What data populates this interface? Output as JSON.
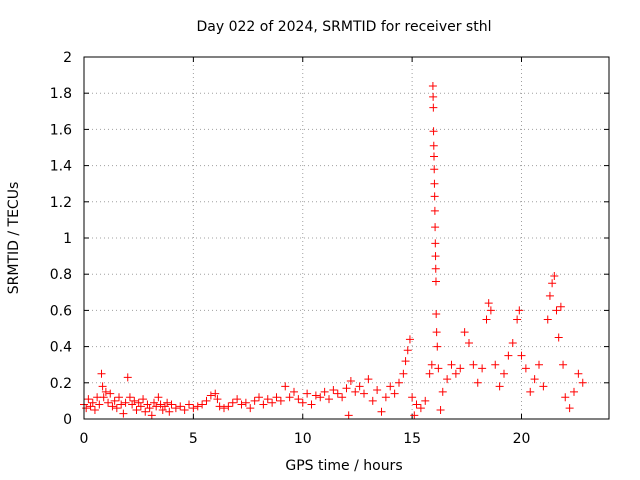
{
  "chart_data": {
    "type": "scatter",
    "title": "Day 022 of 2024, SRMTID for receiver sthl",
    "xlabel": "GPS time / hours",
    "ylabel": "SRMTID / TECUs",
    "xlim": [
      0,
      24
    ],
    "ylim": [
      0,
      2
    ],
    "x_ticks": [
      0,
      5,
      10,
      15,
      20
    ],
    "x_tick_labels": [
      "0",
      "5",
      "10",
      "15",
      "20"
    ],
    "y_ticks": [
      0,
      0.2,
      0.4,
      0.6,
      0.8,
      1,
      1.2,
      1.4,
      1.6,
      1.8,
      2
    ],
    "y_tick_labels": [
      "0",
      "0.2",
      "0.4",
      "0.6",
      "0.8",
      "1",
      "1.2",
      "1.4",
      "1.6",
      "1.8",
      "2"
    ],
    "grid": true,
    "marker": "+",
    "marker_color": "#ff0000",
    "series": [
      {
        "name": "SRMTID",
        "points": [
          [
            0.0,
            0.08
          ],
          [
            0.1,
            0.06
          ],
          [
            0.2,
            0.11
          ],
          [
            0.3,
            0.07
          ],
          [
            0.4,
            0.09
          ],
          [
            0.5,
            0.05
          ],
          [
            0.6,
            0.12
          ],
          [
            0.7,
            0.08
          ],
          [
            0.8,
            0.25
          ],
          [
            0.85,
            0.18
          ],
          [
            0.9,
            0.12
          ],
          [
            1.0,
            0.15
          ],
          [
            1.1,
            0.09
          ],
          [
            1.2,
            0.14
          ],
          [
            1.3,
            0.07
          ],
          [
            1.4,
            0.1
          ],
          [
            1.5,
            0.06
          ],
          [
            1.6,
            0.12
          ],
          [
            1.7,
            0.08
          ],
          [
            1.8,
            0.03
          ],
          [
            1.9,
            0.09
          ],
          [
            2.0,
            0.23
          ],
          [
            2.1,
            0.12
          ],
          [
            2.2,
            0.08
          ],
          [
            2.3,
            0.1
          ],
          [
            2.4,
            0.05
          ],
          [
            2.5,
            0.09
          ],
          [
            2.6,
            0.07
          ],
          [
            2.7,
            0.11
          ],
          [
            2.8,
            0.04
          ],
          [
            2.9,
            0.08
          ],
          [
            3.0,
            0.06
          ],
          [
            3.1,
            0.02
          ],
          [
            3.2,
            0.09
          ],
          [
            3.3,
            0.07
          ],
          [
            3.4,
            0.12
          ],
          [
            3.5,
            0.08
          ],
          [
            3.6,
            0.05
          ],
          [
            3.7,
            0.07
          ],
          [
            3.8,
            0.09
          ],
          [
            3.9,
            0.04
          ],
          [
            4.0,
            0.08
          ],
          [
            4.2,
            0.06
          ],
          [
            4.4,
            0.07
          ],
          [
            4.6,
            0.05
          ],
          [
            4.8,
            0.08
          ],
          [
            5.0,
            0.06
          ],
          [
            5.2,
            0.07
          ],
          [
            5.4,
            0.08
          ],
          [
            5.6,
            0.1
          ],
          [
            5.8,
            0.13
          ],
          [
            6.0,
            0.14
          ],
          [
            6.1,
            0.11
          ],
          [
            6.2,
            0.07
          ],
          [
            6.4,
            0.06
          ],
          [
            6.6,
            0.07
          ],
          [
            6.8,
            0.09
          ],
          [
            7.0,
            0.11
          ],
          [
            7.2,
            0.08
          ],
          [
            7.4,
            0.09
          ],
          [
            7.6,
            0.06
          ],
          [
            7.8,
            0.1
          ],
          [
            8.0,
            0.12
          ],
          [
            8.2,
            0.08
          ],
          [
            8.4,
            0.11
          ],
          [
            8.6,
            0.09
          ],
          [
            8.8,
            0.12
          ],
          [
            9.0,
            0.1
          ],
          [
            9.2,
            0.18
          ],
          [
            9.4,
            0.12
          ],
          [
            9.6,
            0.15
          ],
          [
            9.8,
            0.11
          ],
          [
            10.0,
            0.09
          ],
          [
            10.2,
            0.14
          ],
          [
            10.4,
            0.08
          ],
          [
            10.6,
            0.13
          ],
          [
            10.8,
            0.12
          ],
          [
            11.0,
            0.15
          ],
          [
            11.2,
            0.11
          ],
          [
            11.4,
            0.16
          ],
          [
            11.6,
            0.14
          ],
          [
            11.8,
            0.12
          ],
          [
            12.0,
            0.17
          ],
          [
            12.1,
            0.02
          ],
          [
            12.2,
            0.21
          ],
          [
            12.4,
            0.15
          ],
          [
            12.6,
            0.18
          ],
          [
            12.8,
            0.14
          ],
          [
            13.0,
            0.22
          ],
          [
            13.2,
            0.1
          ],
          [
            13.4,
            0.16
          ],
          [
            13.6,
            0.04
          ],
          [
            13.8,
            0.12
          ],
          [
            14.0,
            0.18
          ],
          [
            14.2,
            0.14
          ],
          [
            14.4,
            0.2
          ],
          [
            14.6,
            0.25
          ],
          [
            14.7,
            0.32
          ],
          [
            14.8,
            0.38
          ],
          [
            14.9,
            0.44
          ],
          [
            15.0,
            0.12
          ],
          [
            15.1,
            0.02
          ],
          [
            15.2,
            0.08
          ],
          [
            15.4,
            0.06
          ],
          [
            15.6,
            0.1
          ],
          [
            15.8,
            0.25
          ],
          [
            15.9,
            0.3
          ],
          [
            15.95,
            1.84
          ],
          [
            15.96,
            1.78
          ],
          [
            15.97,
            1.72
          ],
          [
            15.98,
            1.59
          ],
          [
            15.99,
            1.51
          ],
          [
            16.0,
            1.45
          ],
          [
            16.01,
            1.38
          ],
          [
            16.02,
            1.3
          ],
          [
            16.03,
            1.23
          ],
          [
            16.04,
            1.15
          ],
          [
            16.05,
            1.06
          ],
          [
            16.06,
            0.97
          ],
          [
            16.07,
            0.9
          ],
          [
            16.08,
            0.83
          ],
          [
            16.09,
            0.76
          ],
          [
            16.1,
            0.58
          ],
          [
            16.12,
            0.48
          ],
          [
            16.15,
            0.4
          ],
          [
            16.2,
            0.28
          ],
          [
            16.3,
            0.05
          ],
          [
            16.4,
            0.15
          ],
          [
            16.6,
            0.22
          ],
          [
            16.8,
            0.3
          ],
          [
            17.0,
            0.25
          ],
          [
            17.2,
            0.28
          ],
          [
            17.4,
            0.48
          ],
          [
            17.6,
            0.42
          ],
          [
            17.8,
            0.3
          ],
          [
            18.0,
            0.2
          ],
          [
            18.2,
            0.28
          ],
          [
            18.4,
            0.55
          ],
          [
            18.5,
            0.64
          ],
          [
            18.6,
            0.6
          ],
          [
            18.8,
            0.3
          ],
          [
            19.0,
            0.18
          ],
          [
            19.2,
            0.25
          ],
          [
            19.4,
            0.35
          ],
          [
            19.6,
            0.42
          ],
          [
            19.8,
            0.55
          ],
          [
            19.9,
            0.6
          ],
          [
            20.0,
            0.35
          ],
          [
            20.2,
            0.28
          ],
          [
            20.4,
            0.15
          ],
          [
            20.6,
            0.22
          ],
          [
            20.8,
            0.3
          ],
          [
            21.0,
            0.18
          ],
          [
            21.2,
            0.55
          ],
          [
            21.3,
            0.68
          ],
          [
            21.4,
            0.75
          ],
          [
            21.5,
            0.79
          ],
          [
            21.6,
            0.6
          ],
          [
            21.7,
            0.45
          ],
          [
            21.8,
            0.62
          ],
          [
            21.9,
            0.3
          ],
          [
            22.0,
            0.12
          ],
          [
            22.2,
            0.06
          ],
          [
            22.4,
            0.15
          ],
          [
            22.6,
            0.25
          ],
          [
            22.8,
            0.2
          ]
        ]
      }
    ]
  }
}
